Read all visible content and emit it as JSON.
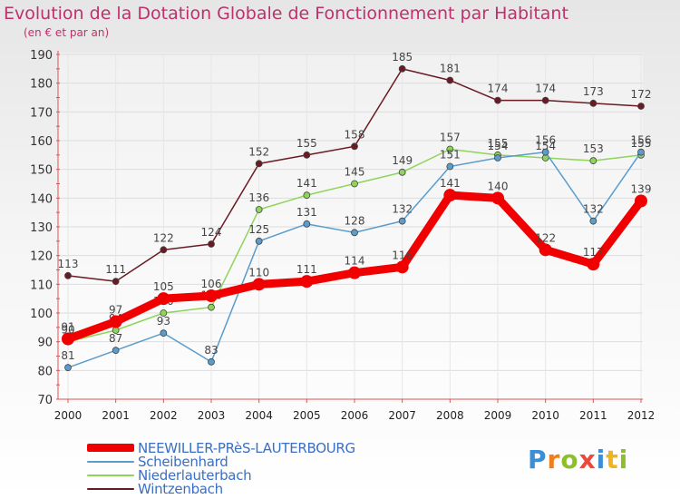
{
  "header": {
    "title": "Evolution de la Dotation Globale de Fonctionnement par Habitant",
    "subtitle": "(en € et par an)"
  },
  "brand": {
    "text": "Proxiti",
    "letters": [
      "P",
      "r",
      "o",
      "x",
      "i",
      "t",
      "i"
    ]
  },
  "chart_data": {
    "type": "line",
    "title": "Evolution de la Dotation Globale de Fonctionnement par Habitant",
    "subtitle": "(en € et par an)",
    "xlabel": "",
    "ylabel": "",
    "x": [
      "2000",
      "2001",
      "2002",
      "2003",
      "2004",
      "2005",
      "2006",
      "2007",
      "2008",
      "2009",
      "2010",
      "2011",
      "2012"
    ],
    "ylim": [
      70,
      190
    ],
    "yticks": [
      70,
      80,
      90,
      100,
      110,
      120,
      130,
      140,
      150,
      160,
      170,
      180,
      190
    ],
    "grid": true,
    "legend_position": "bottom-left",
    "series": [
      {
        "name": "Wintzenbach",
        "color": "#6b1a24",
        "values": [
          113,
          111,
          122,
          124,
          152,
          155,
          158,
          185,
          181,
          174,
          174,
          173,
          172
        ]
      },
      {
        "name": "Niederlauterbach",
        "color": "#8fd45a",
        "values": [
          90,
          94,
          100,
          102,
          136,
          141,
          145,
          149,
          157,
          155,
          154,
          153,
          155
        ]
      },
      {
        "name": "Scheibenhard",
        "color": "#5a9ccc",
        "values": [
          81,
          87,
          93,
          83,
          125,
          131,
          128,
          132,
          151,
          154,
          156,
          132,
          156
        ]
      },
      {
        "name": "NEEWILLER-PRèS-LAUTERBOURG",
        "color": "#f00000",
        "values": [
          91,
          97,
          105,
          106,
          110,
          111,
          114,
          116,
          141,
          140,
          122,
          117,
          139
        ]
      }
    ],
    "legend": [
      {
        "name": "NEEWILLER-PRèS-LAUTERBOURG",
        "color": "#f00000"
      },
      {
        "name": "Scheibenhard",
        "color": "#5a9ccc"
      },
      {
        "name": "Niederlauterbach",
        "color": "#8fd45a"
      },
      {
        "name": "Wintzenbach",
        "color": "#6b1a24"
      }
    ]
  }
}
